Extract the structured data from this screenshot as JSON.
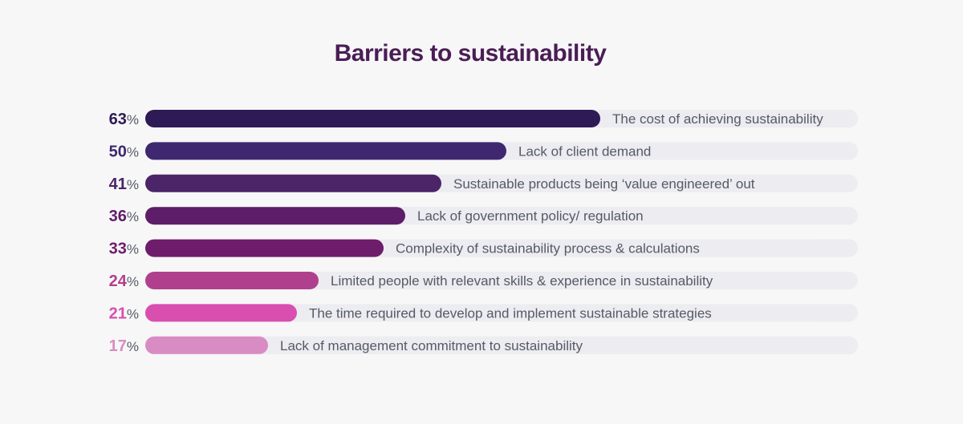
{
  "chart_data": {
    "type": "bar",
    "orientation": "horizontal",
    "title": "Barriers to sustainability",
    "unit": "%",
    "xlim": [
      0,
      100
    ],
    "grid": false,
    "legend": "none",
    "categories": [
      "The cost of achieving sustainability",
      "Lack of client demand",
      "Sustainable products being ‘value engineered’ out",
      "Lack of government policy/ regulation",
      "Complexity of sustainability process & calculations",
      "Limited people with relevant skills & experience in sustainability",
      "The time required to develop and implement sustainable strategies",
      "Lack of management commitment to sustainability"
    ],
    "values": [
      63,
      50,
      41,
      36,
      33,
      24,
      21,
      17
    ],
    "colors": [
      "#2e1a55",
      "#3f2870",
      "#4b2568",
      "#5e1d68",
      "#6e1d6b",
      "#b0408e",
      "#d94fb0",
      "#d98bc3"
    ],
    "track_color": "#ececf1",
    "title_color": "#4a1d55"
  }
}
